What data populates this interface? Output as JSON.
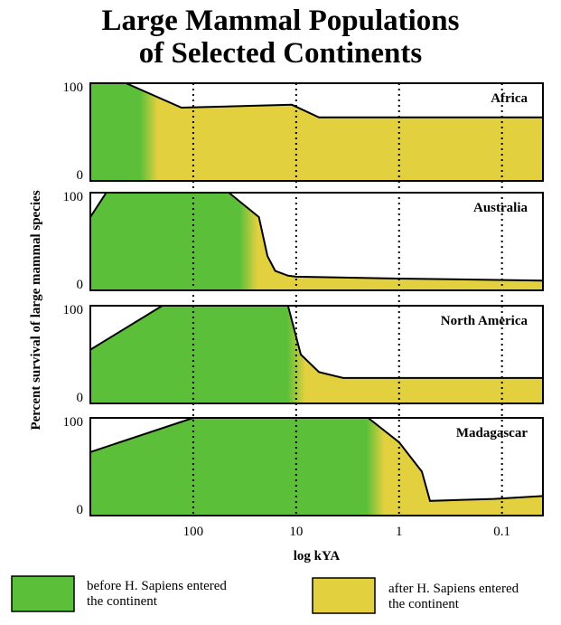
{
  "title_lines": [
    "Large Mammal Populations",
    "of Selected Continents"
  ],
  "colors": {
    "before": "#5bbf3a",
    "after": "#e3d03f",
    "outline": "#000000",
    "background": "#ffffff"
  },
  "legend": {
    "before": [
      "before H. Sapiens entered",
      "the continent"
    ],
    "after": [
      "after H. Sapiens entered",
      "the continent"
    ]
  },
  "chart_data": {
    "type": "area",
    "xlabel": "log kYA",
    "ylabel": "Percent survival of large mammal species",
    "x_scale": "log",
    "x_reversed": true,
    "xlim": [
      1000,
      0.04
    ],
    "ylim": [
      0,
      100
    ],
    "x_ticks": [
      100,
      10,
      1,
      0.1
    ],
    "x_tick_labels": [
      "100",
      "10",
      "1",
      "0.1"
    ],
    "y_ticks": [
      0,
      100
    ],
    "y_tick_labels": [
      "0",
      "100"
    ],
    "dotted_gridlines_at": [
      100,
      10,
      1,
      0.1
    ],
    "series": [
      {
        "name": "Africa",
        "human_arrival_kya": 270,
        "x": [
          1000,
          450,
          130,
          11,
          6,
          0.04
        ],
        "y": [
          100,
          100,
          75,
          78,
          65,
          65
        ]
      },
      {
        "name": "Australia",
        "human_arrival_kya": 29,
        "x": [
          1000,
          700,
          45,
          23,
          19,
          16,
          12,
          10,
          1,
          0.04
        ],
        "y": [
          75,
          100,
          100,
          75,
          35,
          20,
          15,
          14,
          12,
          10
        ]
      },
      {
        "name": "North America",
        "human_arrival_kya": 10,
        "x": [
          1000,
          200,
          12,
          9,
          6,
          3.5,
          0.04
        ],
        "y": [
          55,
          100,
          100,
          50,
          32,
          26,
          26
        ]
      },
      {
        "name": "Madagascar",
        "human_arrival_kya": 1.7,
        "x": [
          1000,
          100,
          2,
          1,
          0.6,
          0.5,
          0.12,
          0.04
        ],
        "y": [
          65,
          100,
          100,
          75,
          45,
          15,
          17,
          20
        ]
      }
    ]
  }
}
